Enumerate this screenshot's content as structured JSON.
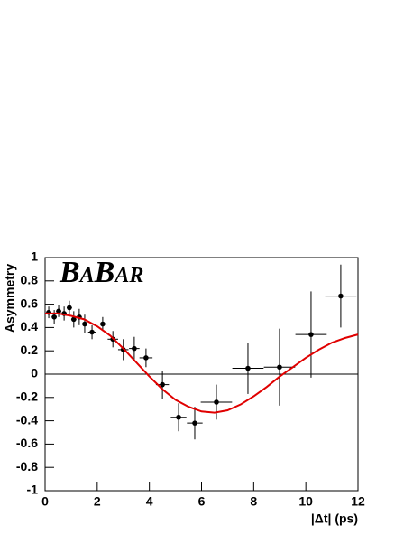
{
  "chart_data": {
    "type": "errorbar",
    "annotation": "BaBar",
    "x_label": "|Δt| (ps)",
    "y_label": "Asymmetry",
    "xlim": [
      0,
      12
    ],
    "ylim": [
      -1,
      1
    ],
    "xticks": [
      0,
      2,
      4,
      6,
      8,
      10,
      12
    ],
    "yticks": [
      -1,
      -0.8,
      -0.6,
      -0.4,
      -0.2,
      0,
      0.2,
      0.4,
      0.6,
      0.8,
      1
    ],
    "series": [
      {
        "mode": "points",
        "color": "#000000",
        "x": [
          0.14,
          0.35,
          0.52,
          0.73,
          0.93,
          1.1,
          1.31,
          1.52,
          1.8,
          2.21,
          2.6,
          3.0,
          3.42,
          3.87,
          4.5,
          5.12,
          5.74,
          6.57,
          7.78,
          8.99,
          10.2,
          11.34
        ],
        "values": [
          0.53,
          0.49,
          0.54,
          0.52,
          0.57,
          0.47,
          0.49,
          0.43,
          0.36,
          0.43,
          0.3,
          0.21,
          0.22,
          0.14,
          -0.09,
          -0.37,
          -0.42,
          -0.24,
          0.05,
          0.06,
          0.34,
          0.67
        ],
        "xerr": [
          0.1,
          0.1,
          0.1,
          0.1,
          0.1,
          0.1,
          0.1,
          0.1,
          0.15,
          0.2,
          0.2,
          0.2,
          0.2,
          0.25,
          0.25,
          0.3,
          0.3,
          0.6,
          0.6,
          0.6,
          0.6,
          0.6
        ],
        "yerr": [
          0.05,
          0.06,
          0.05,
          0.06,
          0.06,
          0.07,
          0.07,
          0.08,
          0.06,
          0.06,
          0.07,
          0.09,
          0.1,
          0.08,
          0.12,
          0.12,
          0.14,
          0.15,
          0.22,
          0.33,
          0.37,
          0.27
        ]
      },
      {
        "mode": "line",
        "color": "#e00000",
        "x": [
          0,
          0.5,
          1,
          1.5,
          2,
          2.5,
          3,
          3.5,
          4,
          4.5,
          5,
          5.5,
          6,
          6.5,
          7,
          7.5,
          8,
          8.5,
          9,
          9.5,
          10,
          10.5,
          11,
          11.5,
          12
        ],
        "values": [
          0.52,
          0.52,
          0.5,
          0.47,
          0.41,
          0.33,
          0.22,
          0.1,
          -0.02,
          -0.13,
          -0.22,
          -0.28,
          -0.32,
          -0.33,
          -0.31,
          -0.26,
          -0.19,
          -0.11,
          -0.02,
          0.06,
          0.14,
          0.21,
          0.27,
          0.31,
          0.34
        ]
      }
    ]
  }
}
